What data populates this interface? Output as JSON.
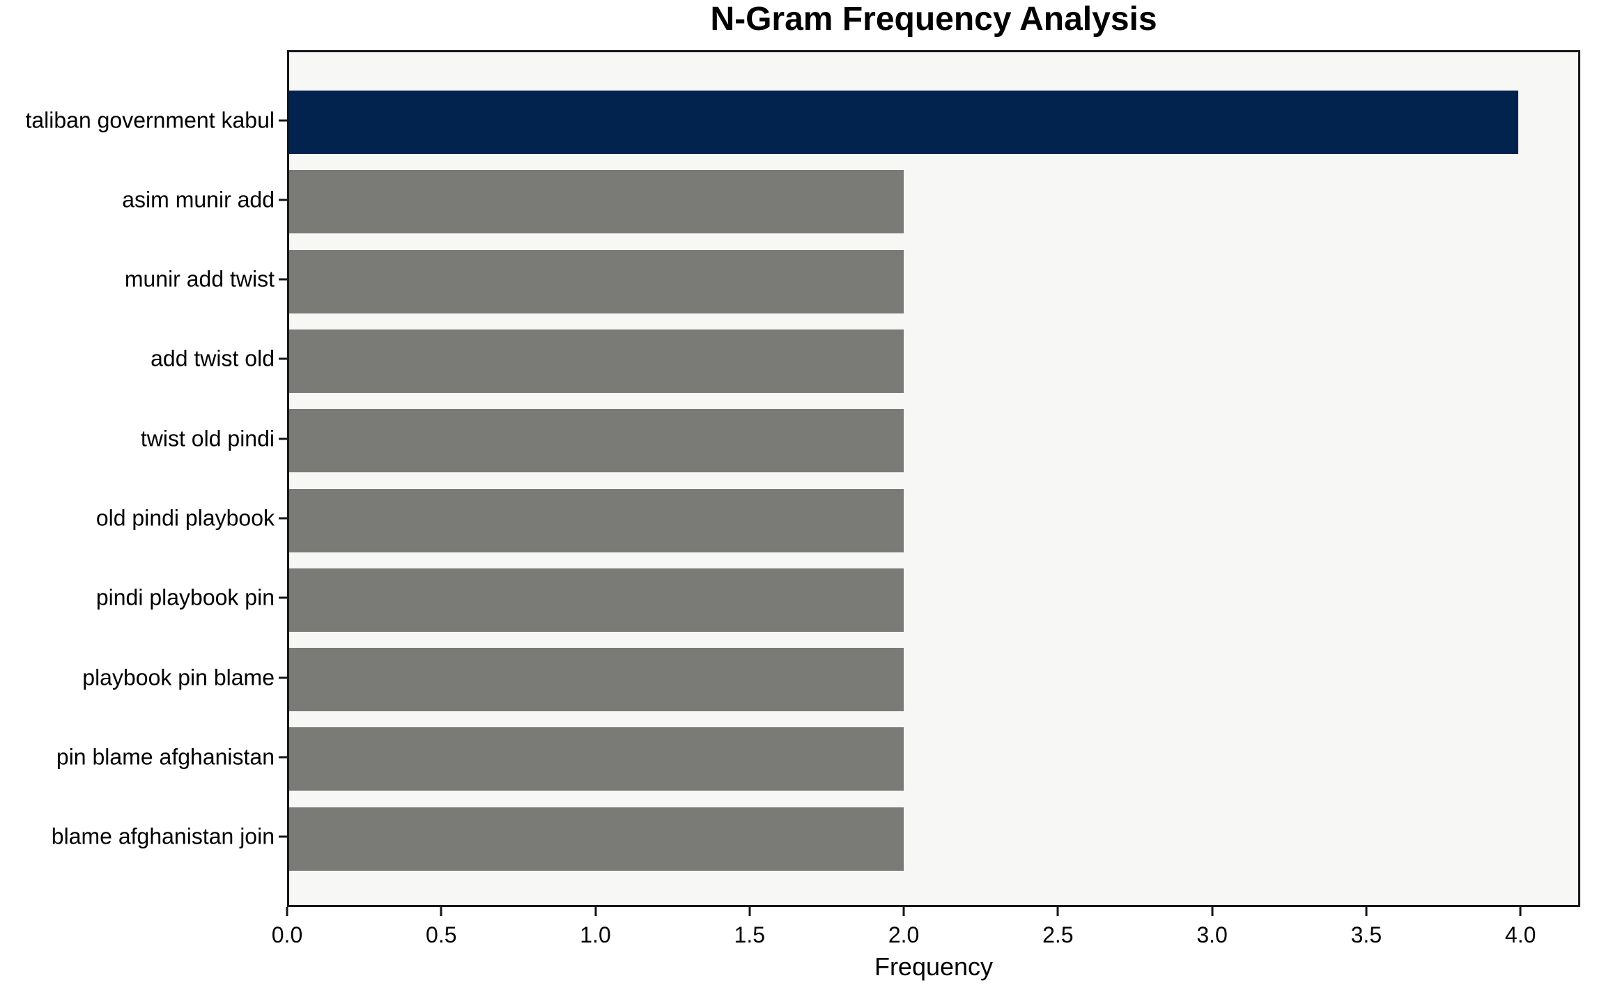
{
  "chart_data": {
    "type": "bar",
    "orientation": "horizontal",
    "title": "N-Gram Frequency Analysis",
    "xlabel": "Frequency",
    "ylabel": "",
    "categories": [
      "taliban government kabul",
      "asim munir add",
      "munir add twist",
      "add twist old",
      "twist old pindi",
      "old pindi playbook",
      "pindi playbook pin",
      "playbook pin blame",
      "pin blame afghanistan",
      "blame afghanistan join"
    ],
    "values": [
      4,
      2,
      2,
      2,
      2,
      2,
      2,
      2,
      2,
      2
    ],
    "bar_colors": [
      "#02234e",
      "#7a7a77",
      "#7a7a77",
      "#7a7a77",
      "#7a7a77",
      "#7a7a77",
      "#7a7a77",
      "#7a7a77",
      "#7a7a77",
      "#7a7a77"
    ],
    "xticks": [
      0.0,
      0.5,
      1.0,
      1.5,
      2.0,
      2.5,
      3.0,
      3.5,
      4.0
    ],
    "xtick_labels": [
      "0.0",
      "0.5",
      "1.0",
      "1.5",
      "2.0",
      "2.5",
      "3.0",
      "3.5",
      "4.0"
    ],
    "xlim": [
      0,
      4.194
    ],
    "grid": false,
    "legend": null
  },
  "colors": {
    "highlight_bar": "#02234e",
    "default_bar": "#7a7a77",
    "plot_background": "#f7f7f6",
    "figure_background": "#ffffff",
    "axis": "#15161a",
    "text": "#000000"
  }
}
